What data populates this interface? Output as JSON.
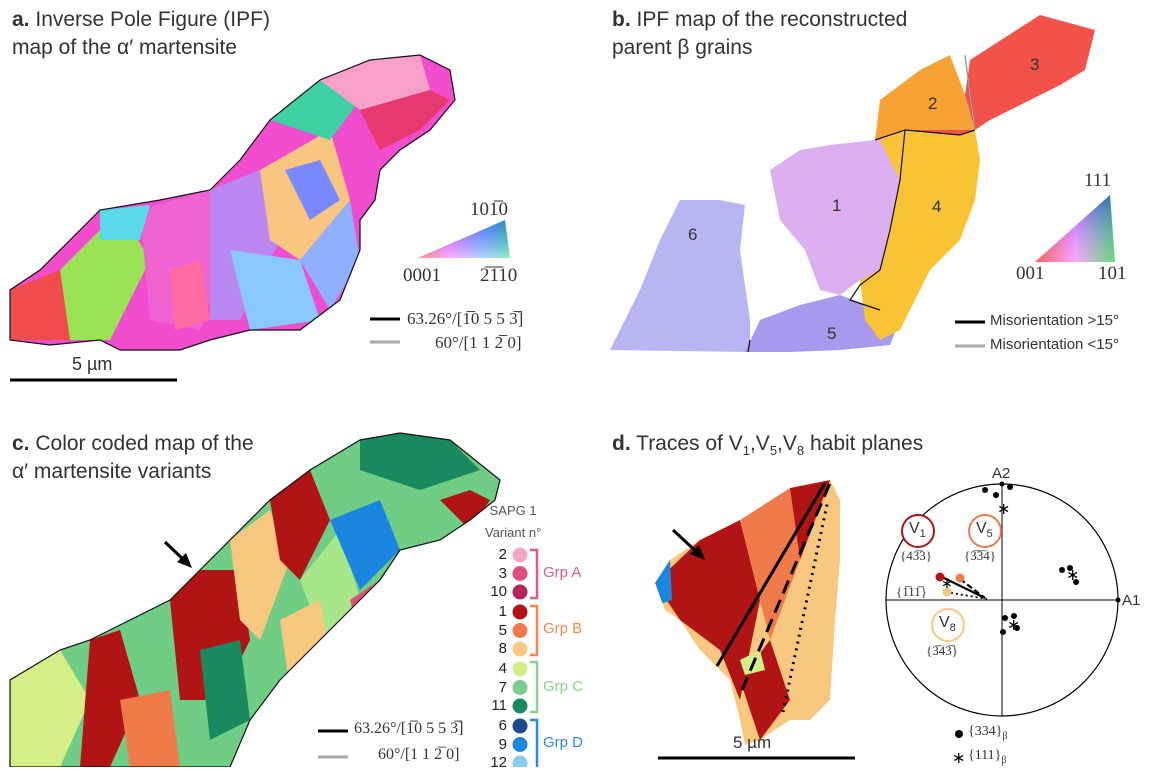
{
  "panels": {
    "a": {
      "letter": "a.",
      "title_line1": "Inverse Pole Figure (IPF)",
      "title_line2": "map of the α′ martensite",
      "key_top": "101̅0",
      "key_left": "0001",
      "key_right": "2̅1̅10",
      "legend_black": "63.26°/[1̅0 5 5 3̅]",
      "legend_gray": "60°/[1 1 2̅ 0]",
      "scale": "5 µm",
      "colors": {
        "black_line": "#000000",
        "gray_line": "#aaaaaa"
      }
    },
    "b": {
      "letter": "b.",
      "title_line1": "IPF map of the reconstructed",
      "title_line2": "parent β grains",
      "grains": [
        {
          "label": "1",
          "color": "#dcb0f0"
        },
        {
          "label": "2",
          "color": "#f6a235"
        },
        {
          "label": "3",
          "color": "#f2524a"
        },
        {
          "label": "4",
          "color": "#f8c436"
        },
        {
          "label": "5",
          "color": "#a898ee"
        },
        {
          "label": "6",
          "color": "#b8b6f2"
        }
      ],
      "key_top": "111",
      "key_left": "001",
      "key_right": "101",
      "legend_black": "Misorientation >15°",
      "legend_gray": "Misorientation <15°"
    },
    "c": {
      "letter": "c.",
      "title_line1": "Color coded map of the",
      "title_line2": "α′ martensite variants",
      "sapg_line1": "SAPG 1",
      "sapg_line2": "Variant n°",
      "groups": [
        {
          "name": "Grp A",
          "color": "#e05a8a",
          "variants": [
            {
              "n": "2",
              "color": "#f4a6c6"
            },
            {
              "n": "3",
              "color": "#e0507e"
            },
            {
              "n": "10",
              "color": "#b8235a"
            }
          ]
        },
        {
          "name": "Grp B",
          "color": "#f08a50",
          "variants": [
            {
              "n": "1",
              "color": "#b01414"
            },
            {
              "n": "5",
              "color": "#f07a4a"
            },
            {
              "n": "8",
              "color": "#f8c880"
            }
          ]
        },
        {
          "name": "Grp C",
          "color": "#8ed08e",
          "variants": [
            {
              "n": "4",
              "color": "#d4ee88"
            },
            {
              "n": "7",
              "color": "#7acd8a"
            },
            {
              "n": "11",
              "color": "#1a8a5e"
            }
          ]
        },
        {
          "name": "Grp D",
          "color": "#2a8ae0",
          "variants": [
            {
              "n": "6",
              "color": "#1a4a8e"
            },
            {
              "n": "9",
              "color": "#1a86e0"
            },
            {
              "n": "12",
              "color": "#86ccf4"
            }
          ]
        }
      ],
      "legend_black": "63.26°/[1̅0 5 5 3̅]",
      "legend_gray": "60°/[1 1 2̅ 0]"
    },
    "d": {
      "letter": "d.",
      "title_prefix": "Traces of V",
      "title_sub1": "1",
      "title_sep1": ",V",
      "title_sub5": "5",
      "title_sep2": ",V",
      "title_sub8": "8",
      "title_suffix": " habit planes",
      "axis_a2": "A2",
      "axis_a1": "A1",
      "v1": {
        "label": "V",
        "sub": "1",
        "plane": "{43̅3}",
        "ring_color": "#b01414"
      },
      "v5": {
        "label": "V",
        "sub": "5",
        "plane": "{3̅3̅4}",
        "ring_color": "#f07a4a"
      },
      "v8": {
        "label": "V",
        "sub": "8",
        "plane": "{3̅43̅}",
        "ring_color": "#f8c880"
      },
      "pole_111": "{1̅11̅}",
      "legend_dot": "{334}",
      "legend_star": "{111}",
      "legend_sub": "β",
      "scale": "5 µm"
    }
  }
}
